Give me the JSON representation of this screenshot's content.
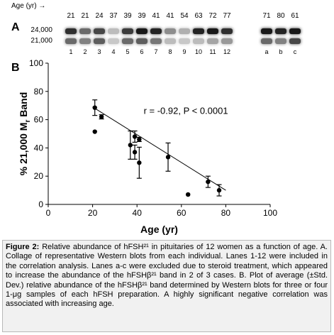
{
  "panel_a": {
    "label": "A",
    "age_header": "Age (yr)",
    "arrow": "→",
    "mw_upper": "24,000",
    "mw_lower": "21,000",
    "lanes": [
      {
        "age": "21",
        "lane": "1",
        "top": 0.8,
        "bottom": 0.55
      },
      {
        "age": "21",
        "lane": "2",
        "top": 0.55,
        "bottom": 0.45
      },
      {
        "age": "24",
        "lane": "3",
        "top": 0.7,
        "bottom": 0.6
      },
      {
        "age": "37",
        "lane": "4",
        "top": 0.2,
        "bottom": 0.15
      },
      {
        "age": "39",
        "lane": "5",
        "top": 0.75,
        "bottom": 0.55
      },
      {
        "age": "39",
        "lane": "6",
        "top": 0.9,
        "bottom": 0.6
      },
      {
        "age": "41",
        "lane": "7",
        "top": 0.85,
        "bottom": 0.5
      },
      {
        "age": "41",
        "lane": "8",
        "top": 0.4,
        "bottom": 0.2
      },
      {
        "age": "54",
        "lane": "9",
        "top": 0.25,
        "bottom": 0.15
      },
      {
        "age": "63",
        "lane": "10",
        "top": 0.85,
        "bottom": 0.2
      },
      {
        "age": "72",
        "lane": "11",
        "top": 0.9,
        "bottom": 0.3
      },
      {
        "age": "77",
        "lane": "12",
        "top": 0.8,
        "bottom": 0.35
      }
    ],
    "excluded_lanes": [
      {
        "age": "71",
        "lane": "a",
        "top": 0.9,
        "bottom": 0.55
      },
      {
        "age": "80",
        "lane": "b",
        "top": 0.85,
        "bottom": 0.45
      },
      {
        "age": "61",
        "lane": "c",
        "top": 0.9,
        "bottom": 0.7
      }
    ]
  },
  "panel_b": {
    "label": "B"
  },
  "chart_data": {
    "type": "scatter",
    "title": "",
    "xlabel": "Age (yr)",
    "ylabel": "% 21,000 M",
    "ylabel_sub": "r",
    "ylabel_tail": " Band",
    "xlim": [
      0,
      100
    ],
    "ylim": [
      0,
      100
    ],
    "xticks": [
      "0",
      "20",
      "40",
      "60",
      "80",
      "100"
    ],
    "yticks": [
      "0",
      "20",
      "40",
      "60",
      "80",
      "100"
    ],
    "annotation": "r = -0.92, P < 0.0001",
    "points": [
      {
        "x": 21,
        "y": 68.5,
        "err": 5.5
      },
      {
        "x": 21,
        "y": 51.5,
        "err": 0
      },
      {
        "x": 24,
        "y": 62,
        "err": 1.5
      },
      {
        "x": 37,
        "y": 42,
        "err": 10
      },
      {
        "x": 39,
        "y": 48,
        "err": 4
      },
      {
        "x": 39,
        "y": 37,
        "err": 5
      },
      {
        "x": 41,
        "y": 46,
        "err": 1.5
      },
      {
        "x": 41,
        "y": 29.5,
        "err": 11
      },
      {
        "x": 54,
        "y": 33.5,
        "err": 10
      },
      {
        "x": 63,
        "y": 7,
        "err": 0
      },
      {
        "x": 72,
        "y": 16,
        "err": 4
      },
      {
        "x": 77,
        "y": 10,
        "err": 4
      }
    ],
    "fit": {
      "x": [
        20,
        80
      ],
      "y": [
        69,
        10
      ]
    }
  },
  "caption": {
    "figure_label": "Figure 2:",
    "text": " Relative abundance of hFSH²¹ in pituitaries of 12 women as a function of age. A. Collage of representative Western blots from each individual. Lanes 1-12 were included in the correlation analysis. Lanes a-c were excluded due to steroid treatment, which appeared to increase the abundance of the hFSHβ²¹ band in 2 of 3 cases. B. Plot of average (±Std. Dev.) relative abundance of the hFSHβ²¹ band determined by Western blots for three or four 1-μg samples of each hFSH preparation. A highly significant negative correlation was associated with increasing age."
  }
}
